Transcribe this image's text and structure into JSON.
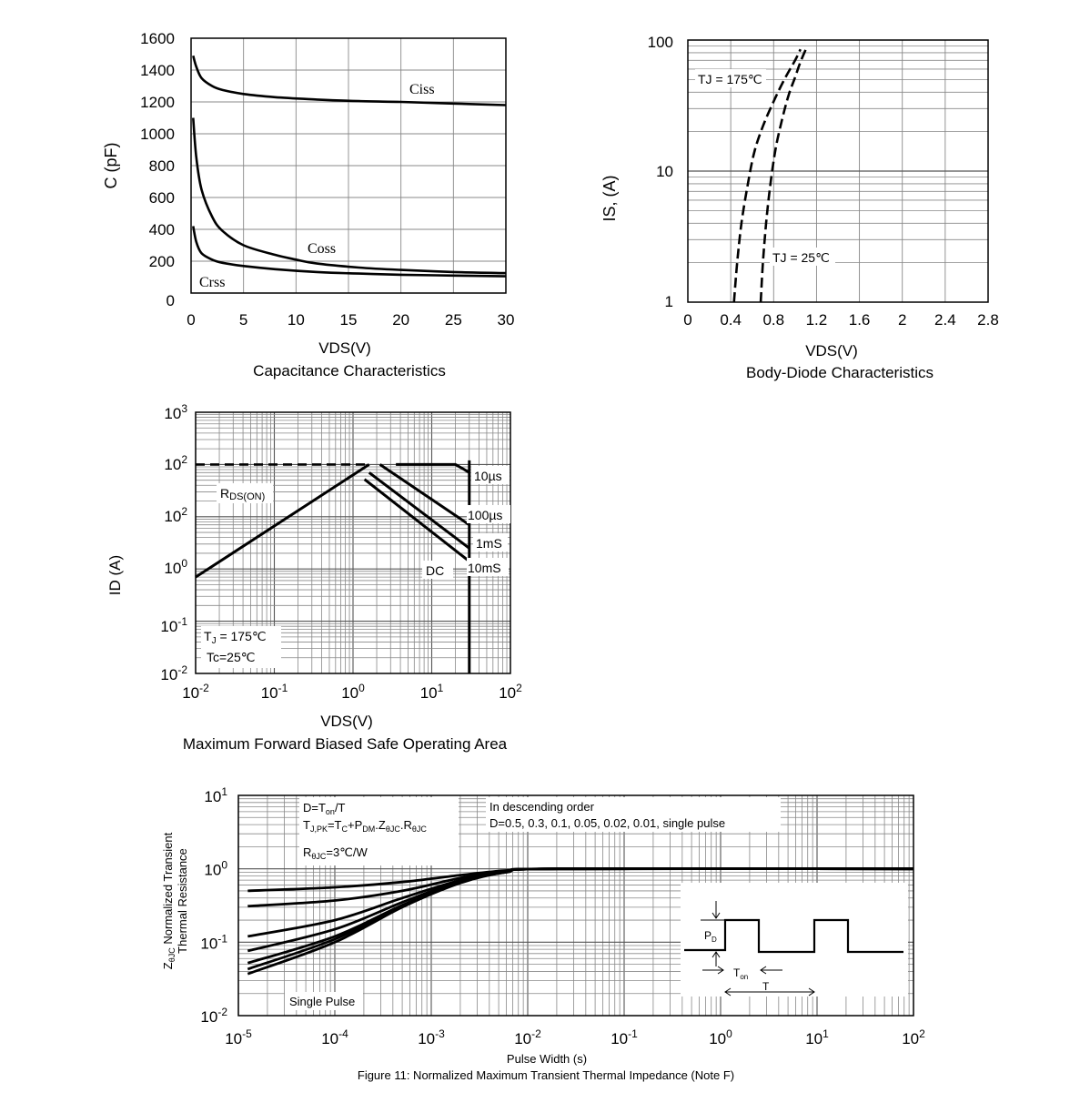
{
  "capacitance": {
    "chart_data": {
      "type": "line",
      "title": "Capacitance Characteristics",
      "xlabel": "VDS(V)",
      "ylabel": "C (pF)",
      "xlim": [
        0,
        30
      ],
      "ylim": [
        0,
        1600
      ],
      "xticks": [
        "0",
        "5",
        "10",
        "15",
        "20",
        "25",
        "30"
      ],
      "yticks": [
        "0",
        "200",
        "400",
        "600",
        "800",
        "1000",
        "1200",
        "1400",
        "1600"
      ],
      "grid": true,
      "series": [
        {
          "name": "Ciss",
          "x": [
            0.2,
            0.5,
            1,
            2,
            3,
            5,
            8,
            12,
            16,
            20,
            25,
            30
          ],
          "y": [
            1490,
            1420,
            1350,
            1300,
            1275,
            1250,
            1230,
            1215,
            1205,
            1200,
            1190,
            1180
          ]
        },
        {
          "name": "Coss",
          "x": [
            0.2,
            0.5,
            1,
            2,
            3,
            5,
            8,
            10,
            12,
            16,
            20,
            25,
            30
          ],
          "y": [
            1100,
            850,
            650,
            480,
            390,
            300,
            240,
            210,
            185,
            160,
            145,
            132,
            125
          ]
        },
        {
          "name": "Crss",
          "x": [
            0.2,
            0.5,
            1,
            2,
            3,
            5,
            8,
            12,
            16,
            20,
            25,
            30
          ],
          "y": [
            420,
            320,
            250,
            210,
            190,
            170,
            150,
            132,
            122,
            115,
            110,
            105
          ]
        }
      ]
    }
  },
  "body_diode": {
    "chart_data": {
      "type": "line",
      "title": "Body-Diode Characteristics",
      "xlabel": "VDS(V)",
      "ylabel": "IS, (A)",
      "xlim": [
        0,
        2.8
      ],
      "ylim": [
        1,
        100
      ],
      "yscale": "log",
      "xticks": [
        "0",
        "0.4",
        "0.8",
        "1.2",
        "1.6",
        "2",
        "2.4",
        "2.8"
      ],
      "yticks": [
        "1",
        "10",
        "100"
      ],
      "grid": true,
      "line_style": "dashed",
      "series": [
        {
          "name": "TJ = 175℃",
          "x": [
            0.43,
            0.46,
            0.5,
            0.56,
            0.62,
            0.7,
            0.8,
            0.9,
            1.0,
            1.05
          ],
          "y": [
            1,
            2,
            4,
            8,
            14,
            22,
            34,
            50,
            70,
            85
          ]
        },
        {
          "name": "TJ = 25℃",
          "x": [
            0.68,
            0.7,
            0.73,
            0.77,
            0.82,
            0.88,
            0.94,
            1.0,
            1.05,
            1.1
          ],
          "y": [
            1,
            2,
            4,
            8,
            15,
            25,
            38,
            52,
            68,
            85
          ]
        }
      ]
    }
  },
  "soa": {
    "chart_data": {
      "type": "line",
      "title": "Maximum Forward Biased Safe Operating Area",
      "xlabel": "VDS(V)",
      "ylabel": "ID (A)",
      "xscale": "log",
      "yscale": "log",
      "xlim": [
        0.01,
        100
      ],
      "ylim": [
        0.01,
        1000
      ],
      "xticks": [
        {
          "base": "10",
          "exp": "-2"
        },
        {
          "base": "10",
          "exp": "-1"
        },
        {
          "base": "10",
          "exp": "0"
        },
        {
          "base": "10",
          "exp": "1"
        },
        {
          "base": "10",
          "exp": "2"
        }
      ],
      "yticks": [
        {
          "base": "10",
          "exp": "-2"
        },
        {
          "base": "10",
          "exp": "-1"
        },
        {
          "base": "10",
          "exp": "0"
        },
        {
          "base": "10",
          "exp": "2"
        },
        {
          "base": "10",
          "exp": "2"
        },
        {
          "base": "10",
          "exp": "3"
        }
      ],
      "grid": true,
      "series": [
        {
          "name": "RDS(ON)",
          "x": [
            0.01,
            1.6
          ],
          "y": [
            0.7,
            100
          ]
        },
        {
          "name": "10µs",
          "x": [
            3.5,
            20,
            26,
            30
          ],
          "y": [
            100,
            100,
            80,
            70
          ]
        },
        {
          "name": "100µs",
          "x": [
            2.2,
            30
          ],
          "y": [
            100,
            7
          ]
        },
        {
          "name": "1mS",
          "x": [
            1.6,
            30
          ],
          "y": [
            70,
            2.5
          ]
        },
        {
          "name": "10mS",
          "x": [
            1.4,
            30
          ],
          "y": [
            52,
            1.4
          ]
        },
        {
          "name": "DC",
          "x": [
            30,
            30
          ],
          "y": [
            0.01,
            120
          ]
        }
      ],
      "limit_line": {
        "style": "dashed",
        "x": [
          0.01,
          1.6
        ],
        "y": [
          100,
          100
        ]
      },
      "labels": {
        "rdson_main": "R",
        "rdson_sub": "DS(ON)",
        "ten_us": "10µs",
        "hundred_us": "100µs",
        "one_ms": "1mS",
        "ten_ms": "10mS",
        "dc": "DC",
        "tj_main": "T",
        "tj_sub": "J",
        "tj_value": " = 175℃",
        "tc": "Tc=25℃"
      }
    }
  },
  "thermal": {
    "figure_caption": "Figure 11: Normalized Maximum Transient Thermal Impedance (Note F)",
    "chart_data": {
      "type": "line",
      "xlabel": "Pulse Width (s)",
      "ylabel_line1_sub": "θJC",
      "ylabel_line1": "Normalized Transient",
      "ylabel_z": "Z",
      "ylabel_line2": "Thermal Resistance",
      "xscale": "log",
      "yscale": "log",
      "xlim": [
        1e-05,
        100
      ],
      "ylim": [
        0.01,
        10
      ],
      "xticks": [
        {
          "base": "10",
          "exp": "-5"
        },
        {
          "base": "10",
          "exp": "-4"
        },
        {
          "base": "10",
          "exp": "-3"
        },
        {
          "base": "10",
          "exp": "-2"
        },
        {
          "base": "10",
          "exp": "-1"
        },
        {
          "base": "10",
          "exp": "0"
        },
        {
          "base": "10",
          "exp": "1"
        },
        {
          "base": "10",
          "exp": "2"
        }
      ],
      "yticks": [
        {
          "base": "10",
          "exp": "-2"
        },
        {
          "base": "10",
          "exp": "-1"
        },
        {
          "base": "10",
          "exp": "0"
        },
        {
          "base": "10",
          "exp": "1"
        }
      ],
      "grid": true,
      "series": [
        {
          "name": "D=0.5",
          "x": [
            1.25e-05,
            0.0001,
            0.0005,
            0.002,
            0.006,
            0.02,
            100
          ],
          "y": [
            0.5,
            0.56,
            0.66,
            0.82,
            0.95,
            1.0,
            1.0
          ]
        },
        {
          "name": "D=0.3",
          "x": [
            1.25e-05,
            0.0001,
            0.0005,
            0.002,
            0.006,
            0.02,
            100
          ],
          "y": [
            0.31,
            0.37,
            0.5,
            0.75,
            0.93,
            1.0,
            1.0
          ]
        },
        {
          "name": "D=0.1",
          "x": [
            1.25e-05,
            0.0001,
            0.0005,
            0.002,
            0.006,
            0.02,
            100
          ],
          "y": [
            0.12,
            0.2,
            0.4,
            0.7,
            0.92,
            1.0,
            1.0
          ]
        },
        {
          "name": "D=0.05",
          "x": [
            1.25e-05,
            0.0001,
            0.0005,
            0.002,
            0.006,
            0.02,
            100
          ],
          "y": [
            0.076,
            0.15,
            0.35,
            0.68,
            0.91,
            1.0,
            1.0
          ]
        },
        {
          "name": "D=0.02",
          "x": [
            1.25e-05,
            0.0001,
            0.0005,
            0.002,
            0.006,
            0.02,
            100
          ],
          "y": [
            0.052,
            0.12,
            0.32,
            0.66,
            0.9,
            1.0,
            1.0
          ]
        },
        {
          "name": "D=0.01",
          "x": [
            1.25e-05,
            0.0001,
            0.0005,
            0.002,
            0.006,
            0.02,
            100
          ],
          "y": [
            0.043,
            0.11,
            0.31,
            0.65,
            0.9,
            1.0,
            1.0
          ]
        },
        {
          "name": "Single Pulse",
          "x": [
            1.25e-05,
            0.0001,
            0.0005,
            0.002,
            0.006,
            0.02,
            100
          ],
          "y": [
            0.037,
            0.1,
            0.3,
            0.64,
            0.9,
            1.0,
            1.0
          ]
        }
      ],
      "notes": {
        "d_formula": "D=T",
        "d_formula_sub": "on",
        "d_formula_tail": "/T",
        "tjpk_t": "T",
        "tjpk_sub": "J,PK",
        "tjpk_eq": "=T",
        "tjpk_c": "C",
        "tjpk_plus": "+P",
        "tjpk_dm": "DM",
        "tjpk_z": ".Z",
        "tjpk_zsub": "θJC",
        "tjpk_r": ".R",
        "tjpk_rsub": "θJC",
        "rth_r": "R",
        "rth_sub": "θJC",
        "rth_val": "=3℃/W",
        "desc_line1": "In descending order",
        "desc_line2": "D=0.5, 0.3, 0.1, 0.05, 0.02, 0.01, single pulse",
        "single_pulse": "Single Pulse",
        "pd_main": "P",
        "pd_sub": "D",
        "ton_main": "T",
        "ton_sub": "on",
        "period": "T"
      }
    }
  }
}
